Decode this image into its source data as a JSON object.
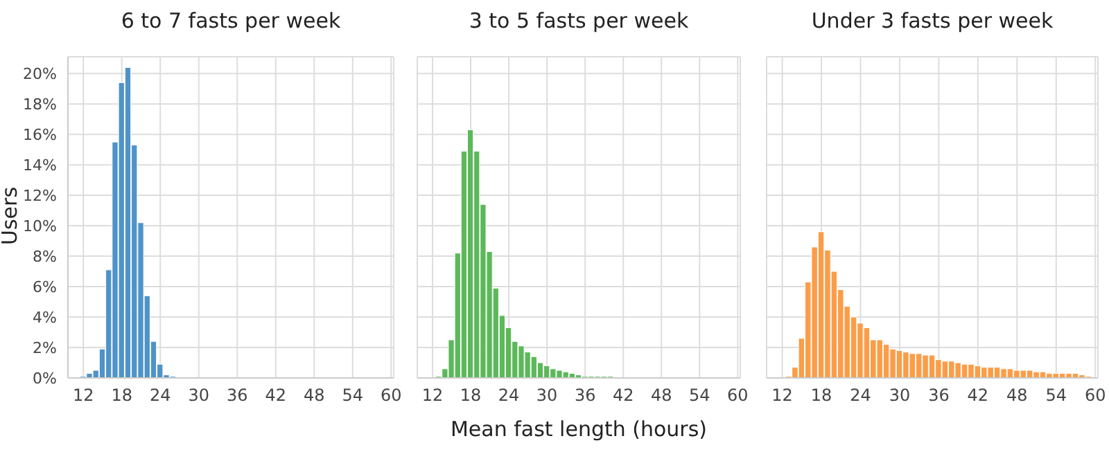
{
  "chart_data": [
    {
      "type": "histogram",
      "title": "6 to 7 fasts per week",
      "ylabel": "Users",
      "color": "#4f93c8",
      "bins": [
        11.5,
        12.5,
        13.5,
        14.5,
        15.5,
        16.5,
        17.5,
        18.5,
        19.5,
        20.5,
        21.5,
        22.5,
        23.5,
        24.5,
        25.5,
        26.5
      ],
      "values": [
        0.1,
        0.3,
        0.5,
        1.9,
        7.1,
        15.5,
        19.4,
        20.4,
        15.3,
        10.2,
        5.4,
        2.4,
        0.9,
        0.2,
        0.1
      ],
      "xlim": [
        9.6,
        60.4
      ],
      "xticks": [
        12,
        18,
        24,
        30,
        36,
        42,
        48,
        54,
        60
      ],
      "ylim": [
        0,
        21.1
      ],
      "yticks": [
        {
          "value": 0,
          "label": "0%"
        },
        {
          "value": 2,
          "label": "2%"
        },
        {
          "value": 4,
          "label": "4%"
        },
        {
          "value": 6,
          "label": "6%"
        },
        {
          "value": 8,
          "label": "8%"
        },
        {
          "value": 10,
          "label": "10%"
        },
        {
          "value": 12,
          "label": "12%"
        },
        {
          "value": 14,
          "label": "14%"
        },
        {
          "value": 16,
          "label": "16%"
        },
        {
          "value": 18,
          "label": "18%"
        },
        {
          "value": 20,
          "label": "20%"
        }
      ],
      "grid": true
    },
    {
      "type": "histogram",
      "title": "3 to 5 fasts per week",
      "xlabel": "Mean fast length (hours)",
      "color": "#5cb85a",
      "bins": [
        12.5,
        13.5,
        14.5,
        15.5,
        16.5,
        17.5,
        18.5,
        19.5,
        20.5,
        21.5,
        22.5,
        23.5,
        24.5,
        25.5,
        26.5,
        27.5,
        28.5,
        29.5,
        30.5,
        31.5,
        32.5,
        33.5,
        34.5,
        35.5,
        36.5,
        37.5,
        38.5,
        39.5,
        40.5
      ],
      "values": [
        0.1,
        0.6,
        2.5,
        8.2,
        14.9,
        16.3,
        14.9,
        11.4,
        8.3,
        5.9,
        4.1,
        3.3,
        2.4,
        2.1,
        1.7,
        1.4,
        1.0,
        0.8,
        0.6,
        0.5,
        0.4,
        0.3,
        0.2,
        0.1,
        0.1,
        0.1,
        0.1,
        0.1
      ],
      "xlim": [
        9.6,
        60.4
      ],
      "xticks": [
        12,
        18,
        24,
        30,
        36,
        42,
        48,
        54,
        60
      ],
      "ylim": [
        0,
        21.1
      ],
      "yticks": [
        0,
        2,
        4,
        6,
        8,
        10,
        12,
        14,
        16,
        18,
        20
      ],
      "grid": true,
      "tick_labels": "x"
    },
    {
      "type": "histogram",
      "title": "Under 3 fasts per week",
      "color": "#fb9d48",
      "bins": [
        12.5,
        13.5,
        14.5,
        15.5,
        16.5,
        17.5,
        18.5,
        19.5,
        20.5,
        21.5,
        22.5,
        23.5,
        24.5,
        25.5,
        26.5,
        27.5,
        28.5,
        29.5,
        30.5,
        31.5,
        32.5,
        33.5,
        34.5,
        35.5,
        36.5,
        37.5,
        38.5,
        39.5,
        40.5,
        41.5,
        42.5,
        43.5,
        44.5,
        45.5,
        46.5,
        47.5,
        48.5,
        49.5,
        50.5,
        51.5,
        52.5,
        53.5,
        54.5,
        55.5,
        56.5,
        57.5,
        58.5,
        59.5
      ],
      "values": [
        0.1,
        0.7,
        2.6,
        6.3,
        8.6,
        9.6,
        8.4,
        7.0,
        5.8,
        4.7,
        4.0,
        3.6,
        3.3,
        2.5,
        2.5,
        2.2,
        1.9,
        1.8,
        1.7,
        1.6,
        1.6,
        1.5,
        1.5,
        1.2,
        1.1,
        1.1,
        1.0,
        0.9,
        0.9,
        0.8,
        0.7,
        0.7,
        0.7,
        0.6,
        0.6,
        0.5,
        0.5,
        0.5,
        0.4,
        0.4,
        0.3,
        0.3,
        0.3,
        0.3,
        0.3,
        0.2,
        0.1
      ],
      "xlim": [
        9.6,
        60.4
      ],
      "xticks": [
        12,
        18,
        24,
        30,
        36,
        42,
        48,
        54,
        60
      ],
      "ylim": [
        0,
        21.1
      ],
      "yticks": [
        0,
        2,
        4,
        6,
        8,
        10,
        12,
        14,
        16,
        18,
        20
      ],
      "grid": true,
      "tick_labels": "x"
    }
  ]
}
